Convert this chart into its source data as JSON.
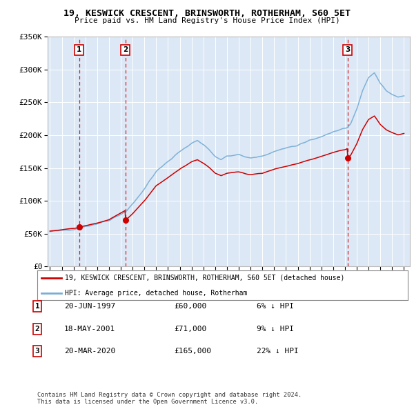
{
  "title": "19, KESWICK CRESCENT, BRINSWORTH, ROTHERHAM, S60 5ET",
  "subtitle": "Price paid vs. HM Land Registry's House Price Index (HPI)",
  "ylim": [
    0,
    350000
  ],
  "yticks": [
    0,
    50000,
    100000,
    150000,
    200000,
    250000,
    300000,
    350000
  ],
  "ytick_labels": [
    "£0",
    "£50K",
    "£100K",
    "£150K",
    "£200K",
    "£250K",
    "£300K",
    "£350K"
  ],
  "sale_dates": [
    1997.47,
    2001.38,
    2020.22
  ],
  "sale_prices": [
    60000,
    71000,
    165000
  ],
  "sale_labels": [
    "1",
    "2",
    "3"
  ],
  "hpi_color": "#7aaed6",
  "sale_color": "#cc0000",
  "legend_sale": "19, KESWICK CRESCENT, BRINSWORTH, ROTHERHAM, S60 5ET (detached house)",
  "legend_hpi": "HPI: Average price, detached house, Rotherham",
  "table_rows": [
    [
      "1",
      "20-JUN-1997",
      "£60,000",
      "6% ↓ HPI"
    ],
    [
      "2",
      "18-MAY-2001",
      "£71,000",
      "9% ↓ HPI"
    ],
    [
      "3",
      "20-MAR-2020",
      "£165,000",
      "22% ↓ HPI"
    ]
  ],
  "footer": "Contains HM Land Registry data © Crown copyright and database right 2024.\nThis data is licensed under the Open Government Licence v3.0.",
  "plot_bg_color": "#dce8f5"
}
